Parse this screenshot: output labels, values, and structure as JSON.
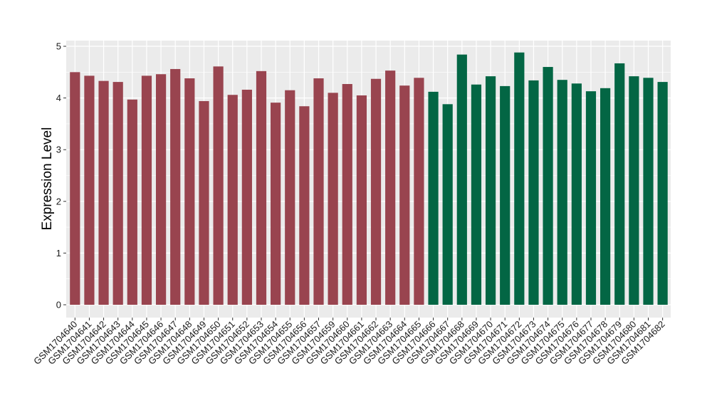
{
  "chart_data": {
    "type": "bar",
    "title": "",
    "xlabel": "",
    "ylabel": "Expression Level",
    "ylim": [
      0,
      5
    ],
    "yticks": [
      0,
      1,
      2,
      3,
      4,
      5
    ],
    "grid": true,
    "legend": "none",
    "panel_background": "#ebebeb",
    "grid_color": "#ffffff",
    "categories": [
      "GSM1704640",
      "GSM1704641",
      "GSM1704642",
      "GSM1704643",
      "GSM1704644",
      "GSM1704645",
      "GSM1704646",
      "GSM1704647",
      "GSM1704648",
      "GSM1704649",
      "GSM1704650",
      "GSM1704651",
      "GSM1704652",
      "GSM1704653",
      "GSM1704654",
      "GSM1704655",
      "GSM1704656",
      "GSM1704657",
      "GSM1704659",
      "GSM1704660",
      "GSM1704661",
      "GSM1704662",
      "GSM1704663",
      "GSM1704664",
      "GSM1704665",
      "GSM1704666",
      "GSM1704667",
      "GSM1704668",
      "GSM1704669",
      "GSM1704670",
      "GSM1704671",
      "GSM1704672",
      "GSM1704673",
      "GSM1704674",
      "GSM1704675",
      "GSM1704676",
      "GSM1704677",
      "GSM1704678",
      "GSM1704679",
      "GSM1704680",
      "GSM1704681",
      "GSM1704682"
    ],
    "values": [
      4.5,
      4.43,
      4.33,
      4.31,
      3.97,
      4.43,
      4.46,
      4.56,
      4.38,
      3.94,
      4.61,
      4.06,
      4.16,
      4.52,
      3.91,
      4.15,
      3.84,
      4.38,
      4.1,
      4.27,
      4.05,
      4.37,
      4.53,
      4.24,
      4.39,
      4.12,
      3.88,
      4.84,
      4.26,
      4.42,
      4.23,
      4.88,
      4.34,
      4.6,
      4.35,
      4.28,
      4.13,
      4.19,
      4.67,
      4.42,
      4.39,
      4.31
    ],
    "bar_colors": [
      "#99444f",
      "#99444f",
      "#99444f",
      "#99444f",
      "#99444f",
      "#99444f",
      "#99444f",
      "#99444f",
      "#99444f",
      "#99444f",
      "#99444f",
      "#99444f",
      "#99444f",
      "#99444f",
      "#99444f",
      "#99444f",
      "#99444f",
      "#99444f",
      "#99444f",
      "#99444f",
      "#99444f",
      "#99444f",
      "#99444f",
      "#99444f",
      "#99444f",
      "#036644",
      "#036644",
      "#036644",
      "#036644",
      "#036644",
      "#036644",
      "#036644",
      "#036644",
      "#036644",
      "#036644",
      "#036644",
      "#036644",
      "#036644",
      "#036644",
      "#036644",
      "#036644",
      "#036644"
    ]
  }
}
